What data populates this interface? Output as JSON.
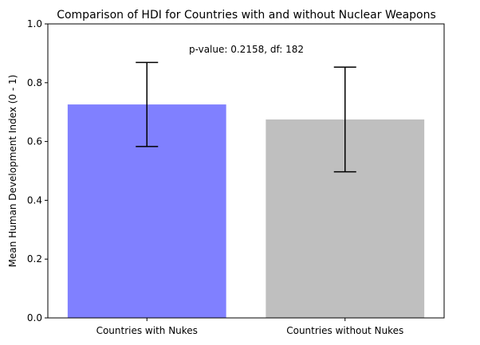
{
  "chart_data": {
    "type": "bar",
    "title": "Comparison of HDI for Countries with and without Nuclear Weapons",
    "xlabel": "",
    "ylabel": "Mean Human Development Index (0 - 1)",
    "categories": [
      "Countries with Nukes",
      "Countries without Nukes"
    ],
    "values": [
      0.726,
      0.675
    ],
    "error": [
      0.143,
      0.178
    ],
    "colors": [
      "#8080ff",
      "#bfbfbf"
    ],
    "ylim": [
      0,
      1
    ],
    "yticks": [
      0.0,
      0.2,
      0.4,
      0.6,
      0.8,
      1.0
    ],
    "ytick_labels": [
      "0.0",
      "0.2",
      "0.4",
      "0.6",
      "0.8",
      "1.0"
    ],
    "annotation": "p-value: 0.2158, df: 182",
    "grid": false
  }
}
